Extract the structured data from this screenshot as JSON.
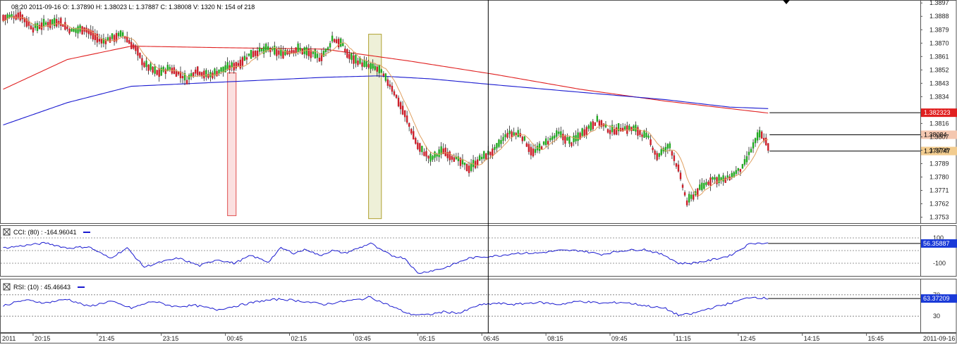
{
  "header": {
    "ohlc_text": "08:20 2011-09-16   O: 1.37890   H: 1.38023   L: 1.37887   C: 1.38008   V: 1320   N: 154 of 218"
  },
  "chart_data": {
    "type": "candlestick",
    "symbol_period": "5-minute",
    "price_axis": {
      "range": [
        1.3749,
        1.3899
      ],
      "ticks": [
        "1.3897",
        "1.3888",
        "1.3879",
        "1.3870",
        "1.3861",
        "1.3852",
        "1.3843",
        "1.3834",
        "1.3816",
        "1.3807",
        "1.3798",
        "1.3789",
        "1.3780",
        "1.3771",
        "1.3762",
        "1.3753"
      ]
    },
    "time_axis": {
      "labels": [
        "2011",
        "20:15",
        "21:45",
        "23:15",
        "00:45",
        "02:15",
        "03:45",
        "05:15",
        "06:45",
        "08:15",
        "09:45",
        "11:15",
        "12:45",
        "14:15",
        "15:45",
        "2011-09-16"
      ]
    },
    "price_badges": [
      {
        "label": "1.382323",
        "value": 1.382323,
        "color": "#e02020",
        "text_color": "#ffffff"
      },
      {
        "label": "1.38084",
        "value": 1.38084,
        "color": "#f4c7b0",
        "text_color": "#000000"
      },
      {
        "label": "1.379747",
        "value": 1.379747,
        "color": "#f2cc8f",
        "text_color": "#000000"
      }
    ],
    "candles_anchor": [
      [
        0,
        1.3887
      ],
      [
        8,
        1.3889
      ],
      [
        14,
        1.388
      ],
      [
        20,
        1.3883
      ],
      [
        26,
        1.3885
      ],
      [
        32,
        1.3878
      ],
      [
        38,
        1.388
      ],
      [
        46,
        1.3871
      ],
      [
        50,
        1.3873
      ],
      [
        56,
        1.3876
      ],
      [
        62,
        1.3866
      ],
      [
        66,
        1.3856
      ],
      [
        72,
        1.385
      ],
      [
        78,
        1.3853
      ],
      [
        84,
        1.3848
      ],
      [
        86,
        1.3845
      ],
      [
        90,
        1.3852
      ],
      [
        96,
        1.3848
      ],
      [
        104,
        1.3853
      ],
      [
        110,
        1.3856
      ],
      [
        116,
        1.3863
      ],
      [
        124,
        1.3866
      ],
      [
        130,
        1.3863
      ],
      [
        138,
        1.3866
      ],
      [
        144,
        1.3863
      ],
      [
        148,
        1.386
      ],
      [
        152,
        1.3866
      ],
      [
        154,
        1.3873
      ],
      [
        158,
        1.387
      ],
      [
        162,
        1.3861
      ],
      [
        170,
        1.3855
      ],
      [
        176,
        1.3852
      ],
      [
        182,
        1.384
      ],
      [
        188,
        1.3822
      ],
      [
        194,
        1.3801
      ],
      [
        200,
        1.3792
      ],
      [
        206,
        1.3798
      ],
      [
        212,
        1.3792
      ],
      [
        218,
        1.3786
      ],
      [
        224,
        1.3793
      ],
      [
        230,
        1.3798
      ],
      [
        236,
        1.3809
      ],
      [
        242,
        1.3809
      ],
      [
        248,
        1.3796
      ],
      [
        254,
        1.3803
      ],
      [
        260,
        1.3809
      ],
      [
        266,
        1.3803
      ],
      [
        272,
        1.3811
      ],
      [
        278,
        1.3818
      ],
      [
        284,
        1.3811
      ],
      [
        290,
        1.3813
      ],
      [
        296,
        1.3812
      ],
      [
        302,
        1.3806
      ],
      [
        306,
        1.3794
      ],
      [
        312,
        1.3801
      ],
      [
        316,
        1.3785
      ],
      [
        320,
        1.3763
      ],
      [
        326,
        1.3772
      ],
      [
        332,
        1.3779
      ],
      [
        338,
        1.3778
      ],
      [
        342,
        1.3782
      ],
      [
        346,
        1.3786
      ],
      [
        350,
        1.3798
      ],
      [
        354,
        1.3809
      ],
      [
        356,
        1.3806
      ],
      [
        358,
        1.3801
      ]
    ],
    "moving_averages": [
      {
        "color": "#e02020",
        "points": [
          [
            0,
            1.3839
          ],
          [
            30,
            1.3859
          ],
          [
            60,
            1.3868
          ],
          [
            100,
            1.3867
          ],
          [
            150,
            1.3866
          ],
          [
            190,
            1.3858
          ],
          [
            230,
            1.3849
          ],
          [
            270,
            1.3839
          ],
          [
            310,
            1.3831
          ],
          [
            340,
            1.3826
          ],
          [
            358,
            1.3823
          ]
        ]
      },
      {
        "color": "#1a1ad0",
        "points": [
          [
            0,
            1.3815
          ],
          [
            30,
            1.383
          ],
          [
            60,
            1.3841
          ],
          [
            90,
            1.3843
          ],
          [
            120,
            1.3845
          ],
          [
            150,
            1.3847
          ],
          [
            175,
            1.3848
          ],
          [
            200,
            1.3846
          ],
          [
            230,
            1.3842
          ],
          [
            270,
            1.3837
          ],
          [
            310,
            1.3832
          ],
          [
            340,
            1.3827
          ],
          [
            358,
            1.3826
          ]
        ]
      }
    ],
    "fast_ma_color": "#e0a060",
    "highlight_boxes": [
      {
        "start": 105,
        "end": 109,
        "top": 1.385,
        "bottom": 1.3754,
        "fill": "#fbe0e0",
        "stroke": "#e05050"
      },
      {
        "start": 171,
        "end": 177,
        "top": 1.3876,
        "bottom": 1.3752,
        "fill": "#eef0d8",
        "stroke": "#b0a030"
      }
    ],
    "crosshair_index": 227,
    "total_bars": 360,
    "cci": {
      "label": "CCI: (80) : -164.96041",
      "ticks": [
        "100",
        "-100"
      ],
      "levels": [
        100,
        0,
        -100
      ],
      "current_label": "56.35887",
      "anchor": [
        [
          0,
          20
        ],
        [
          10,
          40
        ],
        [
          20,
          60
        ],
        [
          30,
          20
        ],
        [
          40,
          30
        ],
        [
          50,
          -60
        ],
        [
          58,
          20
        ],
        [
          66,
          -130
        ],
        [
          74,
          -90
        ],
        [
          82,
          -60
        ],
        [
          92,
          -120
        ],
        [
          100,
          -70
        ],
        [
          108,
          -100
        ],
        [
          116,
          -40
        ],
        [
          124,
          -90
        ],
        [
          130,
          20
        ],
        [
          136,
          -20
        ],
        [
          142,
          10
        ],
        [
          148,
          -40
        ],
        [
          154,
          0
        ],
        [
          160,
          -20
        ],
        [
          168,
          30
        ],
        [
          172,
          60
        ],
        [
          176,
          10
        ],
        [
          182,
          -40
        ],
        [
          188,
          -60
        ],
        [
          194,
          -180
        ],
        [
          200,
          -160
        ],
        [
          206,
          -140
        ],
        [
          212,
          -100
        ],
        [
          218,
          -60
        ],
        [
          224,
          -50
        ],
        [
          232,
          -40
        ],
        [
          240,
          -20
        ],
        [
          250,
          -20
        ],
        [
          260,
          0
        ],
        [
          270,
          0
        ],
        [
          280,
          -30
        ],
        [
          290,
          0
        ],
        [
          300,
          10
        ],
        [
          310,
          -40
        ],
        [
          316,
          -100
        ],
        [
          322,
          -100
        ],
        [
          330,
          -80
        ],
        [
          340,
          -40
        ],
        [
          350,
          60
        ],
        [
          358,
          56
        ]
      ]
    },
    "rsi": {
      "label": "RSI: (10) : 45.46643",
      "ticks": [
        "70",
        "30"
      ],
      "levels": [
        70,
        30
      ],
      "current_label": "63.37209",
      "anchor": [
        [
          0,
          50
        ],
        [
          10,
          60
        ],
        [
          20,
          55
        ],
        [
          30,
          62
        ],
        [
          40,
          48
        ],
        [
          50,
          58
        ],
        [
          60,
          45
        ],
        [
          70,
          58
        ],
        [
          80,
          48
        ],
        [
          90,
          50
        ],
        [
          100,
          42
        ],
        [
          110,
          50
        ],
        [
          120,
          58
        ],
        [
          130,
          62
        ],
        [
          140,
          58
        ],
        [
          150,
          52
        ],
        [
          160,
          58
        ],
        [
          168,
          62
        ],
        [
          172,
          66
        ],
        [
          176,
          58
        ],
        [
          182,
          48
        ],
        [
          190,
          34
        ],
        [
          198,
          32
        ],
        [
          206,
          38
        ],
        [
          214,
          36
        ],
        [
          222,
          50
        ],
        [
          230,
          54
        ],
        [
          240,
          52
        ],
        [
          250,
          56
        ],
        [
          260,
          52
        ],
        [
          270,
          58
        ],
        [
          280,
          54
        ],
        [
          290,
          56
        ],
        [
          300,
          50
        ],
        [
          310,
          44
        ],
        [
          316,
          32
        ],
        [
          322,
          34
        ],
        [
          330,
          44
        ],
        [
          340,
          54
        ],
        [
          350,
          66
        ],
        [
          358,
          63
        ]
      ]
    }
  }
}
